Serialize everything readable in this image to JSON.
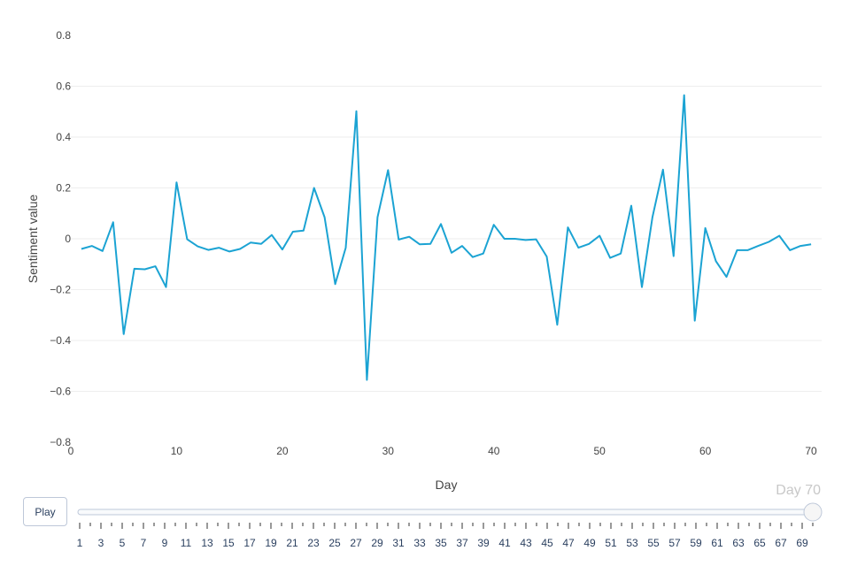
{
  "chart_data": {
    "type": "line",
    "xlabel": "Day",
    "ylabel": "Sentiment value",
    "xlim": [
      0,
      71
    ],
    "ylim": [
      -0.8,
      0.8
    ],
    "x_ticks": [
      0,
      10,
      20,
      30,
      40,
      50,
      60,
      70
    ],
    "y_ticks": [
      -0.8,
      -0.6,
      -0.4,
      -0.2,
      0,
      0.2,
      0.4,
      0.6,
      0.8
    ],
    "grid": true,
    "color": "#1ba3d3",
    "series": [
      {
        "x": [
          1,
          2,
          3,
          4,
          5,
          6,
          7,
          8,
          9,
          10,
          11,
          12,
          13,
          14,
          15,
          16,
          17,
          18,
          19,
          20,
          21,
          22,
          23,
          24,
          25,
          26,
          27,
          28,
          29,
          30,
          31,
          32,
          33,
          34,
          35,
          36,
          37,
          38,
          39,
          40,
          41,
          42,
          43,
          44,
          45,
          46,
          47,
          48,
          49,
          50,
          51,
          52,
          53,
          54,
          55,
          56,
          57,
          58,
          59,
          60,
          61,
          62,
          63,
          64,
          65,
          66,
          67,
          68,
          69,
          70
        ],
        "values": [
          -0.04,
          -0.028,
          -0.048,
          0.065,
          -0.375,
          -0.118,
          -0.12,
          -0.108,
          -0.19,
          0.222,
          -0.002,
          -0.03,
          -0.044,
          -0.035,
          -0.05,
          -0.04,
          -0.015,
          -0.02,
          0.015,
          -0.042,
          0.028,
          0.032,
          0.2,
          0.085,
          -0.178,
          -0.035,
          0.502,
          -0.555,
          0.085,
          0.27,
          -0.003,
          0.008,
          -0.022,
          -0.02,
          0.058,
          -0.055,
          -0.028,
          -0.072,
          -0.058,
          0.055,
          0,
          0,
          -0.005,
          -0.002,
          -0.07,
          -0.338,
          0.045,
          -0.035,
          -0.02,
          0.012,
          -0.075,
          -0.058,
          0.13,
          -0.19,
          0.085,
          0.272,
          -0.068,
          0.565,
          -0.322,
          0.042,
          -0.088,
          -0.15,
          -0.045,
          -0.045,
          -0.028,
          -0.012,
          0.012,
          -0.045,
          -0.028,
          -0.022
        ]
      }
    ]
  },
  "controls": {
    "play_label": "Play",
    "current_label": "Day 70",
    "slider_value": 70,
    "slider_range": [
      1,
      70
    ],
    "slider_tick_labels": [
      "1",
      "3",
      "5",
      "7",
      "9",
      "11",
      "13",
      "15",
      "17",
      "19",
      "21",
      "23",
      "25",
      "27",
      "29",
      "31",
      "33",
      "35",
      "37",
      "39",
      "41",
      "43",
      "45",
      "47",
      "49",
      "51",
      "53",
      "55",
      "57",
      "59",
      "61",
      "63",
      "65",
      "67",
      "69"
    ]
  }
}
